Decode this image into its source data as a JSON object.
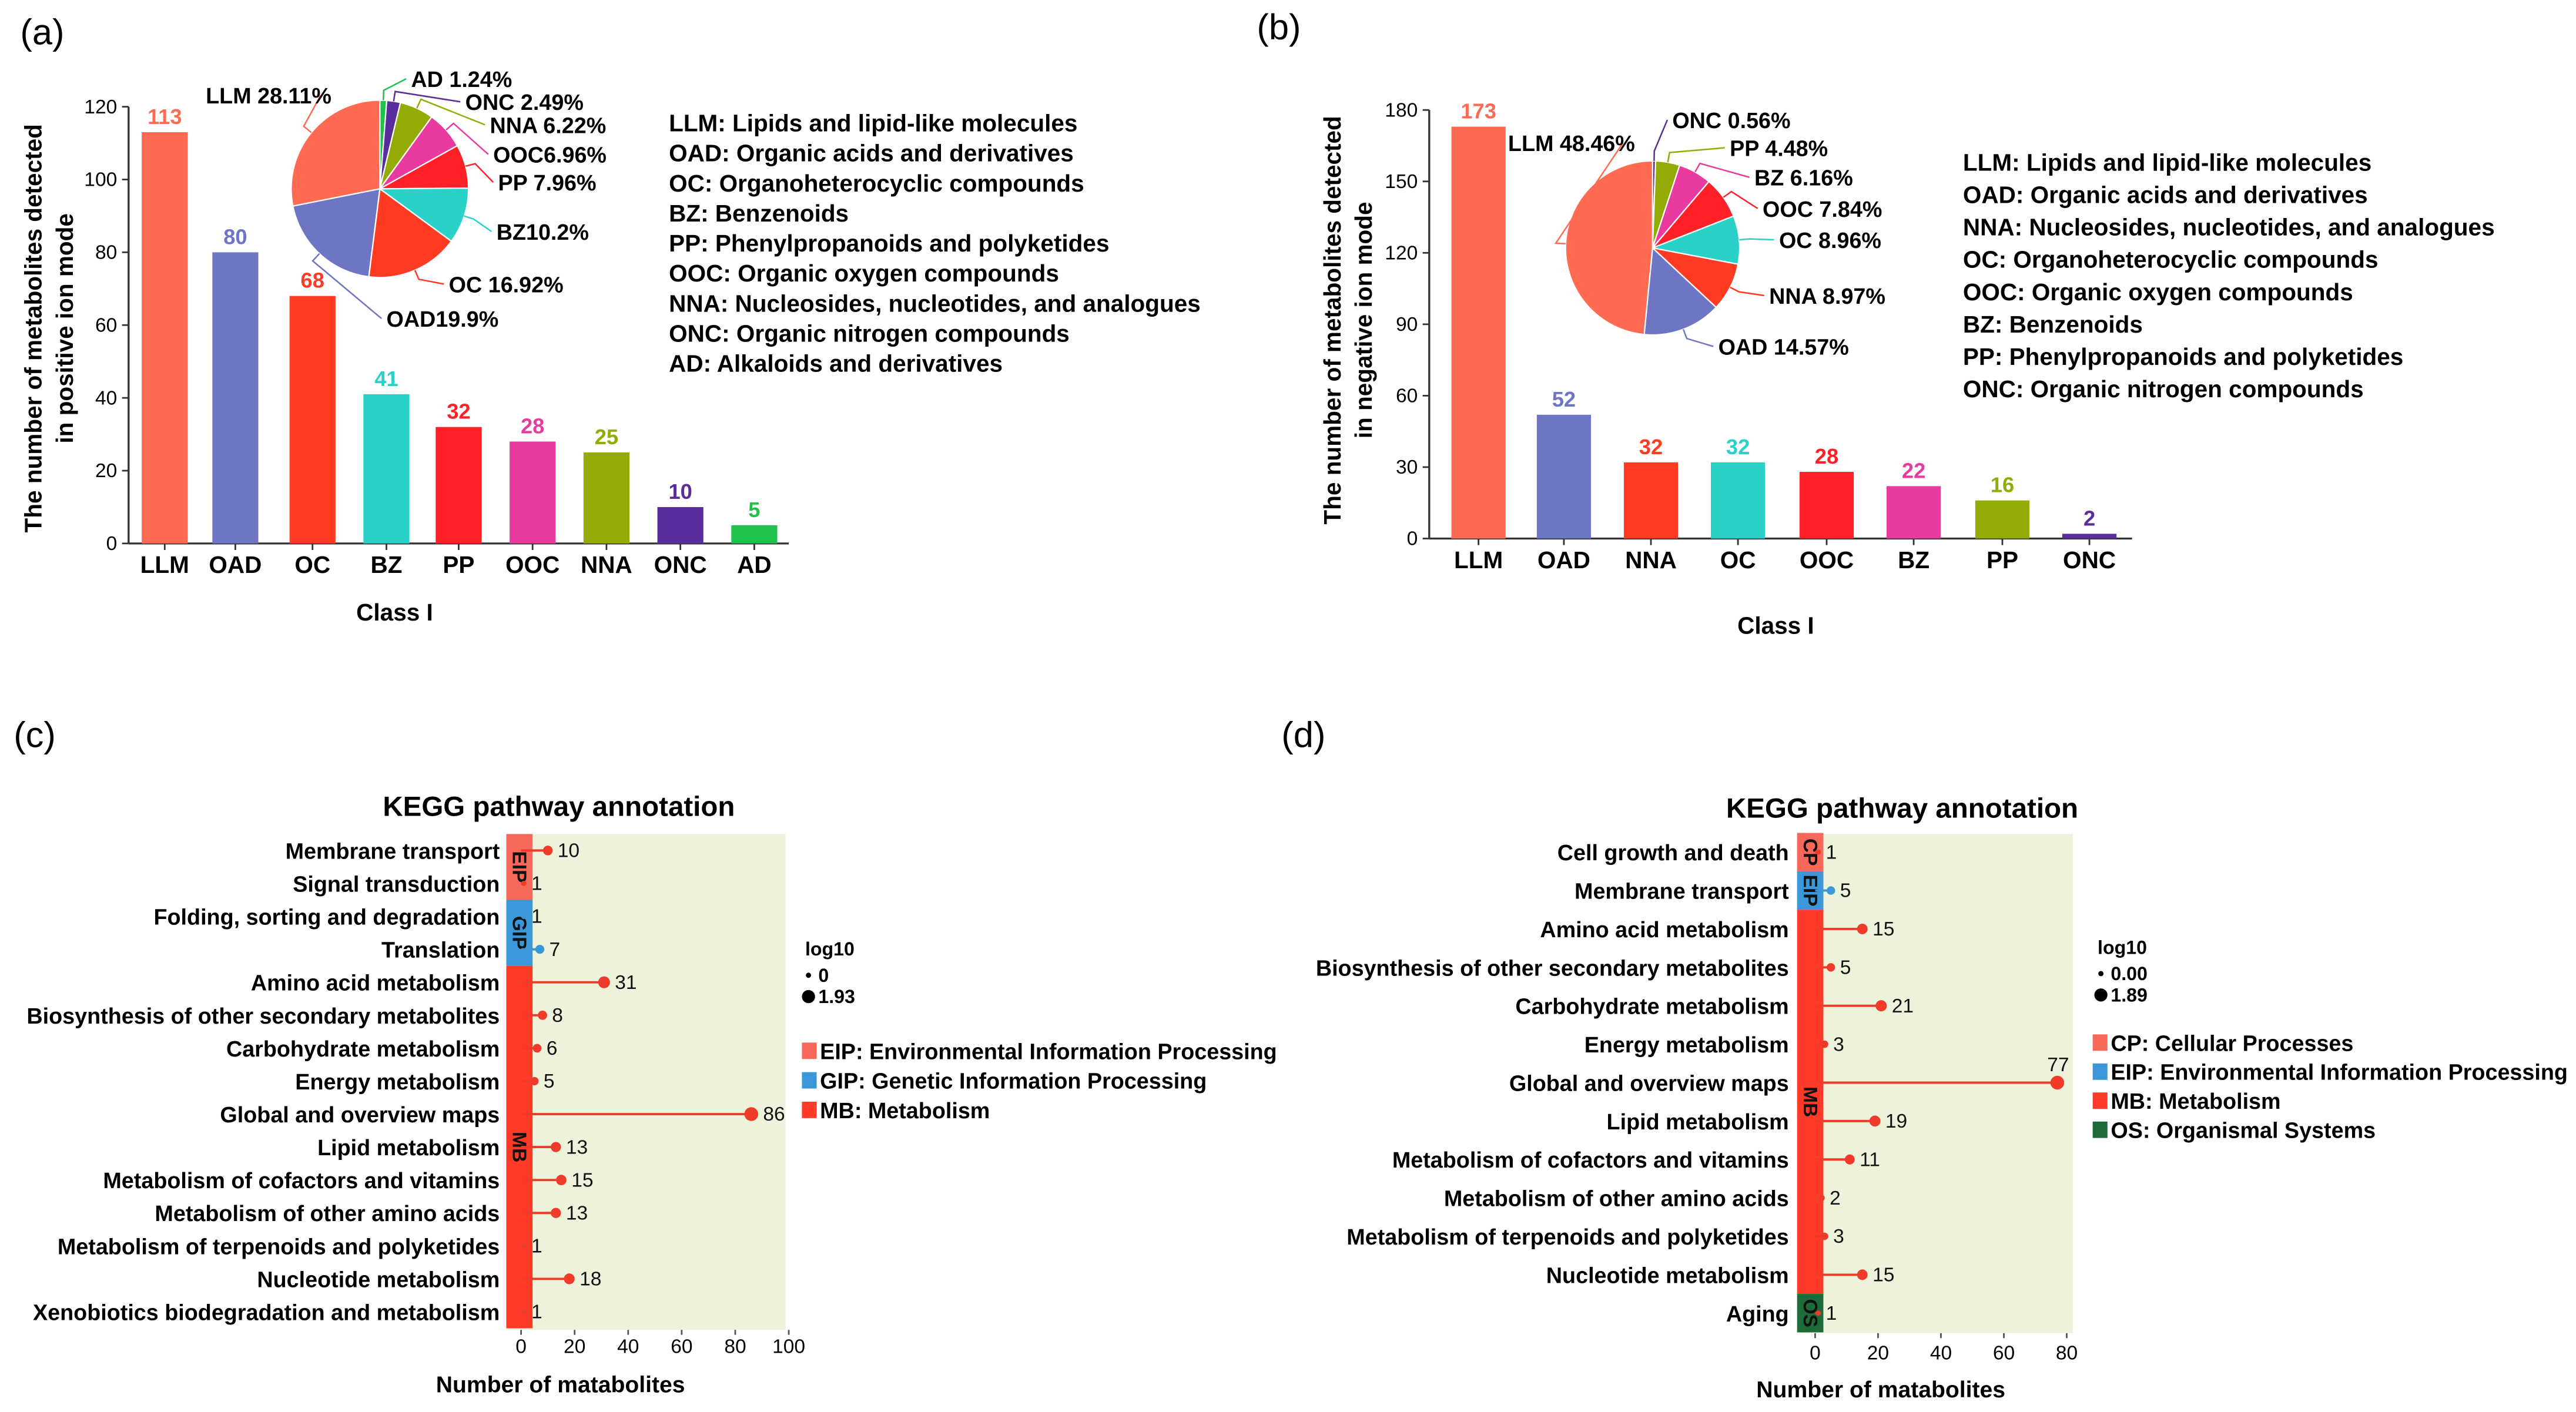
{
  "chart_data": [
    {
      "panel": "(a)",
      "type": "bar",
      "title": "",
      "xlabel": "Class I",
      "ylabel": [
        "The number of metabolites detected",
        "in positive ion mode"
      ],
      "ylim": [
        0,
        120
      ],
      "yticks": [
        0,
        20,
        40,
        60,
        80,
        100,
        120
      ],
      "categories": [
        "LLM",
        "OAD",
        "OC",
        "BZ",
        "PP",
        "OOC",
        "NNA",
        "ONC",
        "AD"
      ],
      "values": [
        113,
        80,
        68,
        41,
        32,
        28,
        25,
        10,
        5
      ],
      "colors": [
        "#ff6a52",
        "#6e75c5",
        "#ff3b24",
        "#29d1c9",
        "#ff2028",
        "#e93aa0",
        "#94ab05",
        "#5a2d9c",
        "#1ec24a"
      ],
      "pie": {
        "type": "pie",
        "slices": [
          {
            "label": "AD 1.24%",
            "value": 1.24,
            "color": "#1ec24a"
          },
          {
            "label": "ONC 2.49%",
            "value": 2.49,
            "color": "#5a2d9c"
          },
          {
            "label": "NNA 6.22%",
            "value": 6.22,
            "color": "#94ab05"
          },
          {
            "label": "OOC6.96%",
            "value": 6.96,
            "color": "#e93aa0"
          },
          {
            "label": "PP 7.96%",
            "value": 7.96,
            "color": "#ff2028"
          },
          {
            "label": "BZ10.2%",
            "value": 10.2,
            "color": "#29d1c9"
          },
          {
            "label": "OC 16.92%",
            "value": 16.92,
            "color": "#ff3b24"
          },
          {
            "label": "OAD19.9%",
            "value": 19.9,
            "color": "#6e75c5"
          },
          {
            "label": "LLM 28.11%",
            "value": 28.11,
            "color": "#ff6a52"
          }
        ]
      },
      "legend": [
        "LLM: Lipids and lipid-like molecules",
        "OAD: Organic acids and derivatives",
        "OC: Organoheterocyclic compounds",
        "BZ: Benzenoids",
        "PP: Phenylpropanoids and polyketides",
        "OOC: Organic oxygen compounds",
        "NNA: Nucleosides, nucleotides, and analogues",
        "ONC: Organic nitrogen compounds",
        "AD: Alkaloids and derivatives"
      ]
    },
    {
      "panel": "(b)",
      "type": "bar",
      "title": "",
      "xlabel": "Class I",
      "ylabel": [
        "The number of metabolites detected",
        "in negative ion mode"
      ],
      "ylim": [
        0,
        180
      ],
      "yticks": [
        0,
        30,
        60,
        90,
        120,
        150,
        180
      ],
      "categories": [
        "LLM",
        "OAD",
        "NNA",
        "OC",
        "OOC",
        "BZ",
        "PP",
        "ONC"
      ],
      "values": [
        173,
        52,
        32,
        32,
        28,
        22,
        16,
        2
      ],
      "colors": [
        "#ff6a52",
        "#6e75c5",
        "#ff3b24",
        "#29d1c9",
        "#ff2028",
        "#e93aa0",
        "#94ab05",
        "#5a2d9c"
      ],
      "pie": {
        "type": "pie",
        "slices": [
          {
            "label": "ONC 0.56%",
            "value": 0.56,
            "color": "#5a2d9c"
          },
          {
            "label": "PP 4.48%",
            "value": 4.48,
            "color": "#94ab05"
          },
          {
            "label": "BZ 6.16%",
            "value": 6.16,
            "color": "#e93aa0"
          },
          {
            "label": "OOC 7.84%",
            "value": 7.84,
            "color": "#ff2028"
          },
          {
            "label": "OC 8.96%",
            "value": 8.96,
            "color": "#29d1c9"
          },
          {
            "label": "NNA 8.97%",
            "value": 8.97,
            "color": "#ff3b24"
          },
          {
            "label": "OAD 14.57%",
            "value": 14.57,
            "color": "#6e75c5"
          },
          {
            "label": "LLM 48.46%",
            "value": 48.46,
            "color": "#ff6a52"
          }
        ]
      },
      "legend": [
        "LLM: Lipids and lipid-like molecules",
        "OAD: Organic acids and derivatives",
        "NNA: Nucleosides, nucleotides, and analogues",
        "OC: Organoheterocyclic compounds",
        "OOC: Organic oxygen compounds",
        "BZ: Benzenoids",
        "PP: Phenylpropanoids and polyketides",
        "ONC: Organic nitrogen compounds"
      ]
    },
    {
      "panel": "(c)",
      "type": "scatter",
      "title": "KEGG pathway annotation",
      "xlabel": "Number of matabolites",
      "xlim": [
        0,
        100
      ],
      "xticks": [
        0,
        20,
        40,
        60,
        80,
        100
      ],
      "pathways": [
        "Membrane transport",
        "Signal transduction",
        "Folding, sorting and degradation",
        "Translation",
        "Amino acid metabolism",
        "Biosynthesis of other secondary metabolites",
        "Carbohydrate metabolism",
        "Energy metabolism",
        "Global and overview maps",
        "Lipid metabolism",
        "Metabolism of cofactors and vitamins",
        "Metabolism of other amino acids",
        "Metabolism of terpenoids and polyketides",
        "Nucleotide metabolism",
        "Xenobiotics biodegradation and metabolism"
      ],
      "values": [
        10,
        1,
        1,
        7,
        31,
        8,
        6,
        5,
        86,
        13,
        15,
        13,
        1,
        18,
        1
      ],
      "groups": [
        {
          "code": "EIP",
          "name": "EIP: Environmental Information Processing",
          "rows": 2,
          "color": "#f7675a",
          "dot": "#f03a2a"
        },
        {
          "code": "GIP",
          "name": "GIP: Genetic Information Processing",
          "rows": 2,
          "color": "#3b98d8",
          "dot": "#3b98d8"
        },
        {
          "code": "MB",
          "name": "MB: Metabolism",
          "rows": 11,
          "color": "#ff3a28",
          "dot": "#f03a2a"
        }
      ],
      "size_legend": {
        "title": "log10",
        "min": "0",
        "max": "1.93"
      }
    },
    {
      "panel": "(d)",
      "type": "scatter",
      "title": "KEGG pathway annotation",
      "xlabel": "Number of matabolites",
      "xlim": [
        0,
        80
      ],
      "xticks": [
        0,
        20,
        40,
        60,
        80
      ],
      "pathways": [
        "Cell growth and death",
        "Membrane transport",
        "Amino acid metabolism",
        "Biosynthesis of other secondary metabolites",
        "Carbohydrate metabolism",
        "Energy metabolism",
        "Global and overview maps",
        "Lipid metabolism",
        "Metabolism of cofactors and vitamins",
        "Metabolism of other amino acids",
        "Metabolism of terpenoids and polyketides",
        "Nucleotide metabolism",
        "Aging"
      ],
      "values": [
        1,
        5,
        15,
        5,
        21,
        3,
        77,
        19,
        11,
        2,
        3,
        15,
        1
      ],
      "groups": [
        {
          "code": "CP",
          "name": "CP: Cellular Processes",
          "rows": 1,
          "color": "#f7675a",
          "dot": "#f03a2a"
        },
        {
          "code": "EIP",
          "name": "EIP: Environmental Information Processing",
          "rows": 1,
          "color": "#3b98d8",
          "dot": "#3b98d8"
        },
        {
          "code": "MB",
          "name": "MB: Metabolism",
          "rows": 10,
          "color": "#ff3a28",
          "dot": "#f03a2a"
        },
        {
          "code": "OS",
          "name": "OS: Organismal Systems",
          "rows": 1,
          "color": "#1d6b3a",
          "dot": "#f03a2a"
        }
      ],
      "size_legend": {
        "title": "log10",
        "min": "0.00",
        "max": "1.89"
      }
    }
  ]
}
